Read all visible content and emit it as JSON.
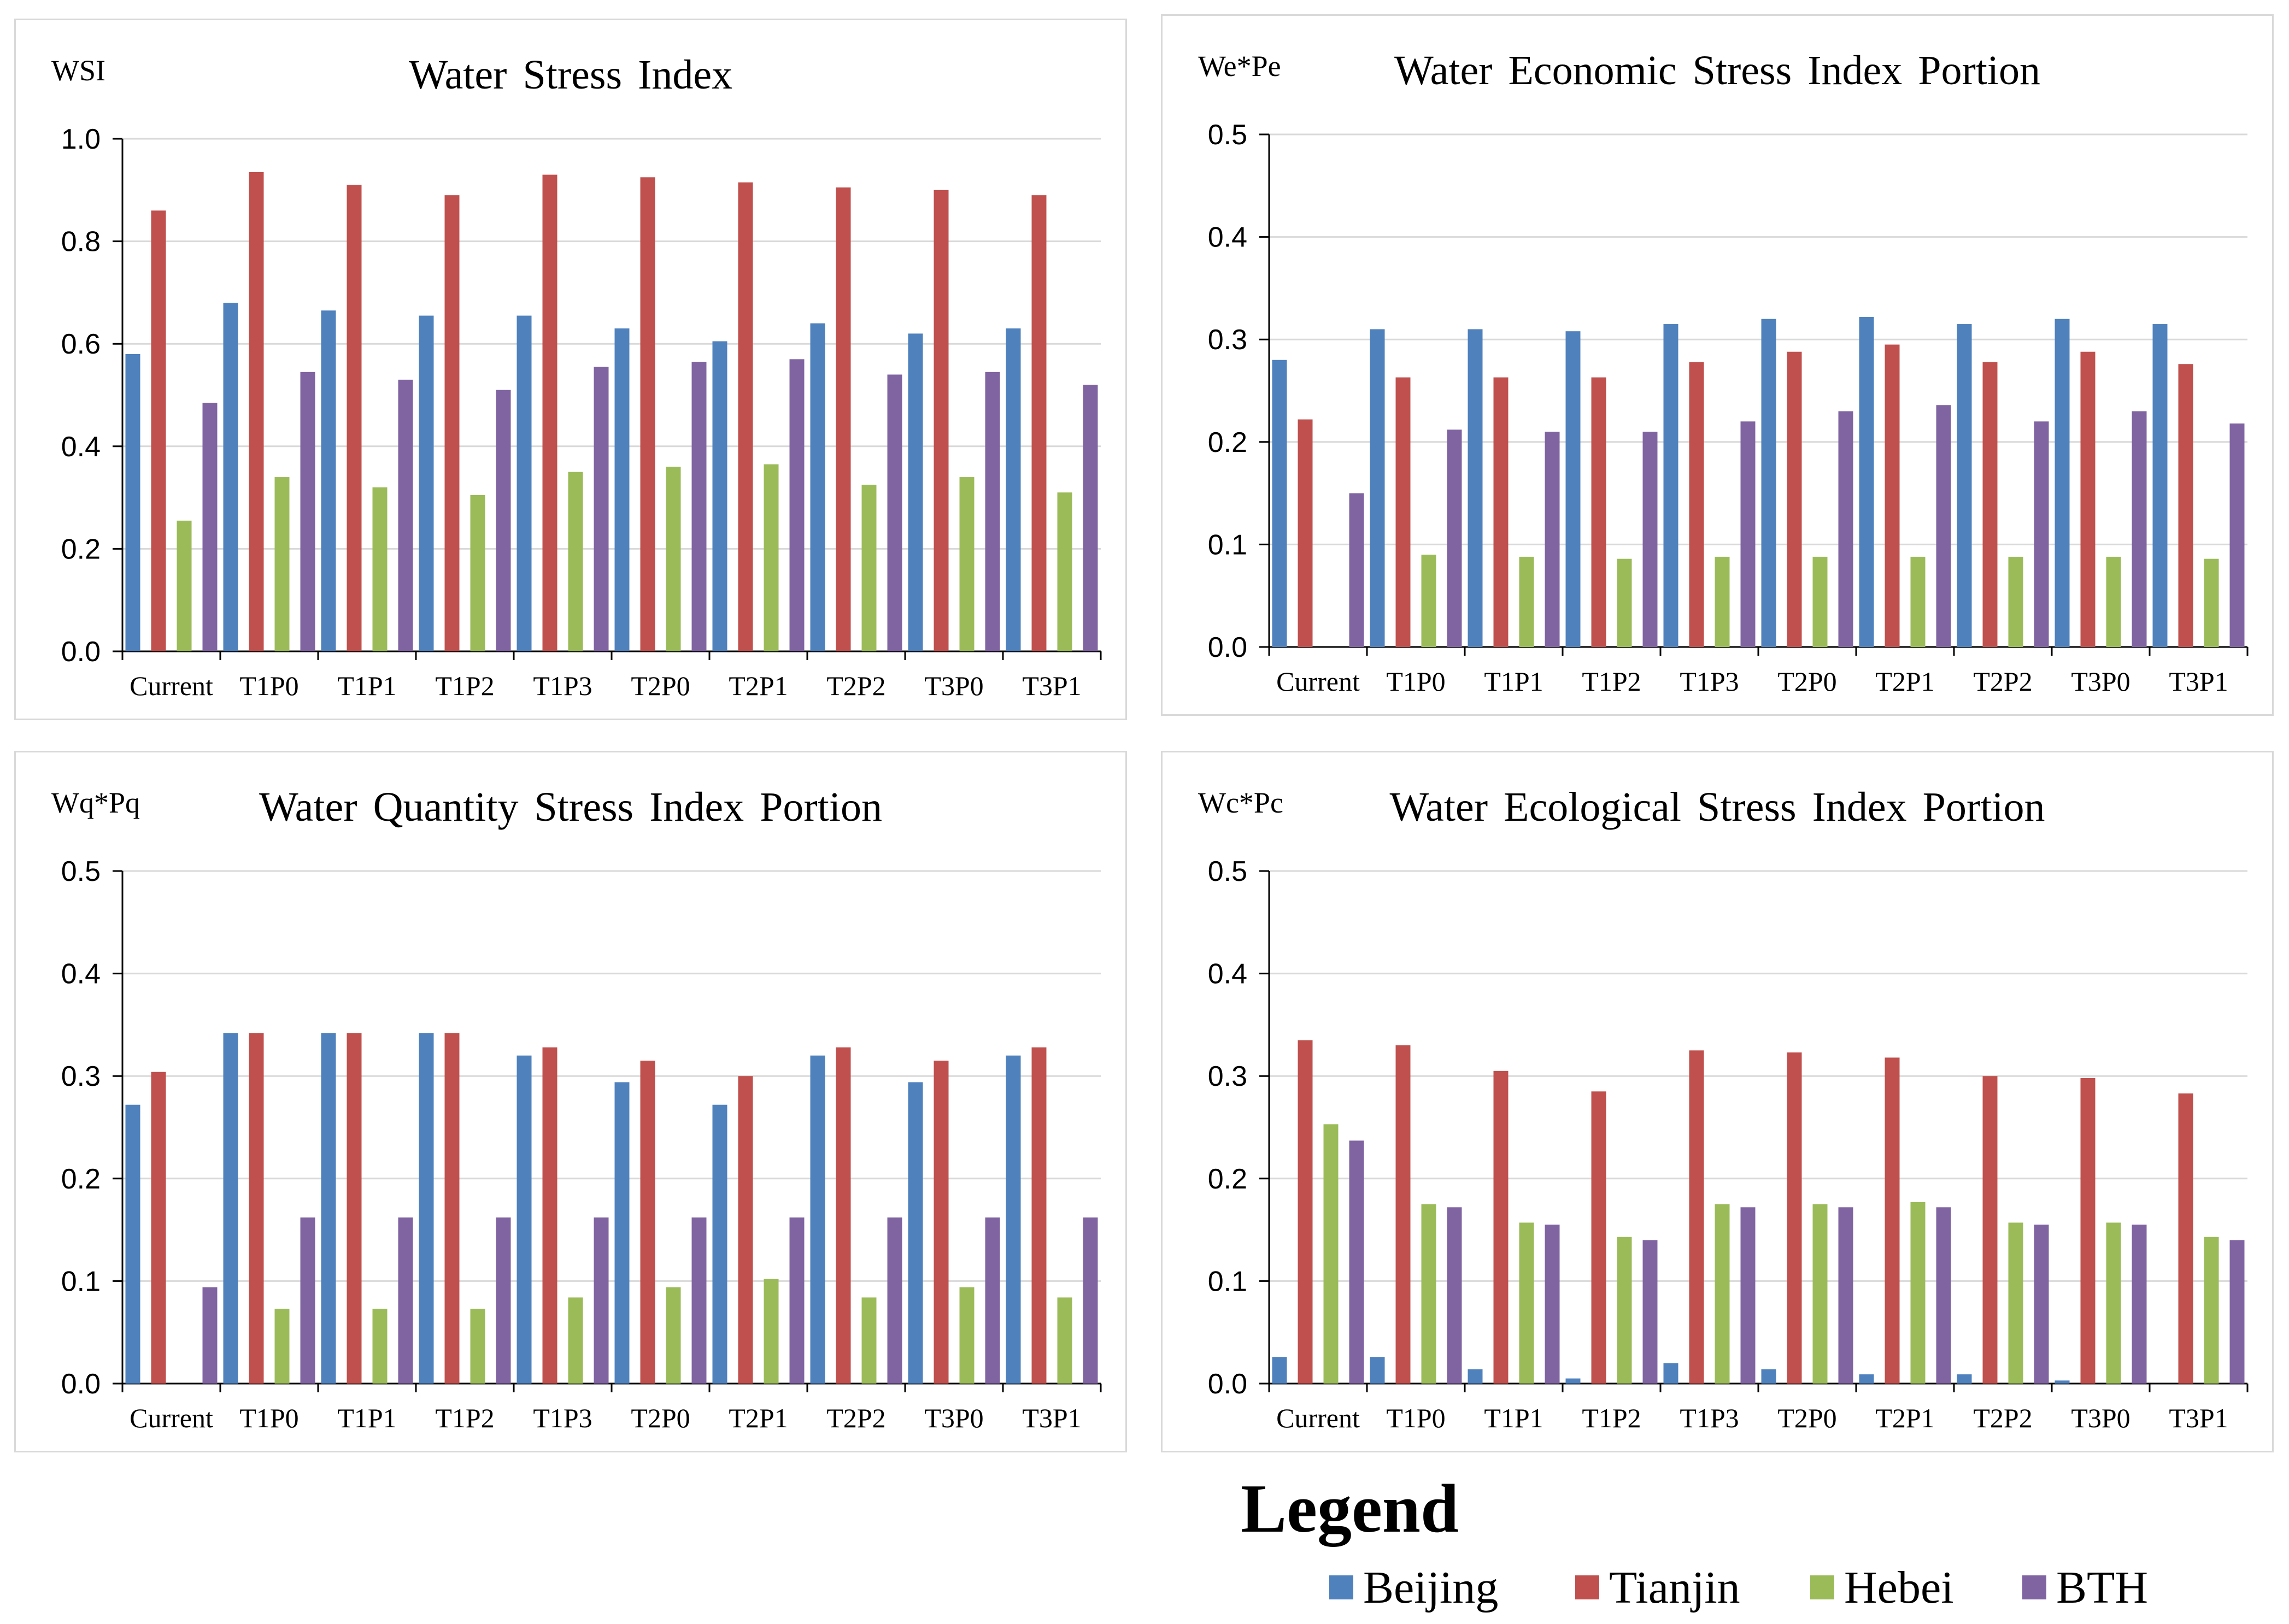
{
  "categories": [
    "Current",
    "T1P0",
    "T1P1",
    "T1P2",
    "T1P3",
    "T2P0",
    "T2P1",
    "T2P2",
    "T3P0",
    "T3P1"
  ],
  "colors": {
    "Beijing": "#4f81bd",
    "Tianjin": "#c0504d",
    "Hebei": "#9bbb59",
    "BTH": "#8064a2"
  },
  "legend": {
    "title": "Legend",
    "items": [
      {
        "name": "Beijing",
        "color": "#4f81bd"
      },
      {
        "name": "Tianjin",
        "color": "#c0504d"
      },
      {
        "name": "Hebei",
        "color": "#9bbb59"
      },
      {
        "name": "BTH",
        "color": "#8064a2"
      }
    ]
  },
  "chart_data": [
    {
      "type": "bar",
      "title": "Water Stress Index",
      "ylabel": "WSI",
      "ylim": [
        0,
        1.0
      ],
      "yticks": [
        "0.0",
        "0.2",
        "0.4",
        "0.6",
        "0.8",
        "1.0"
      ],
      "categories": [
        "Current",
        "T1P0",
        "T1P1",
        "T1P2",
        "T1P3",
        "T2P0",
        "T2P1",
        "T2P2",
        "T3P0",
        "T3P1"
      ],
      "series": [
        {
          "name": "Beijing",
          "values": [
            0.58,
            0.68,
            0.665,
            0.655,
            0.655,
            0.63,
            0.605,
            0.64,
            0.62,
            0.63
          ]
        },
        {
          "name": "Tianjin",
          "values": [
            0.86,
            0.935,
            0.91,
            0.89,
            0.93,
            0.925,
            0.915,
            0.905,
            0.9,
            0.89
          ]
        },
        {
          "name": "Hebei",
          "values": [
            0.255,
            0.34,
            0.32,
            0.305,
            0.35,
            0.36,
            0.365,
            0.325,
            0.34,
            0.31
          ]
        },
        {
          "name": "BTH",
          "values": [
            0.485,
            0.545,
            0.53,
            0.51,
            0.555,
            0.565,
            0.57,
            0.54,
            0.545,
            0.52
          ]
        }
      ]
    },
    {
      "type": "bar",
      "title": "Water Economic Stress Index Portion",
      "ylabel": "We*Pe",
      "ylim": [
        0,
        0.5
      ],
      "yticks": [
        "0.0",
        "0.1",
        "0.2",
        "0.3",
        "0.4",
        "0.5"
      ],
      "categories": [
        "Current",
        "T1P0",
        "T1P1",
        "T1P2",
        "T1P3",
        "T2P0",
        "T2P1",
        "T2P2",
        "T3P0",
        "T3P1"
      ],
      "series": [
        {
          "name": "Beijing",
          "values": [
            0.28,
            0.31,
            0.31,
            0.308,
            0.315,
            0.32,
            0.322,
            0.315,
            0.32,
            0.315
          ]
        },
        {
          "name": "Tianjin",
          "values": [
            0.222,
            0.263,
            0.263,
            0.263,
            0.278,
            0.288,
            0.295,
            0.278,
            0.288,
            0.276
          ]
        },
        {
          "name": "Hebei",
          "values": [
            0,
            0.09,
            0.088,
            0.086,
            0.088,
            0.088,
            0.088,
            0.088,
            0.088,
            0.086
          ]
        },
        {
          "name": "BTH",
          "values": [
            0.15,
            0.212,
            0.21,
            0.21,
            0.22,
            0.23,
            0.236,
            0.22,
            0.23,
            0.218
          ]
        }
      ]
    },
    {
      "type": "bar",
      "title": "Water Quantity Stress Index Portion",
      "ylabel": "Wq*Pq",
      "ylim": [
        0,
        0.5
      ],
      "yticks": [
        "0.0",
        "0.1",
        "0.2",
        "0.3",
        "0.4",
        "0.5"
      ],
      "categories": [
        "Current",
        "T1P0",
        "T1P1",
        "T1P2",
        "T1P3",
        "T2P0",
        "T2P1",
        "T2P2",
        "T3P0",
        "T3P1"
      ],
      "series": [
        {
          "name": "Beijing",
          "values": [
            0.272,
            0.342,
            0.342,
            0.342,
            0.32,
            0.294,
            0.272,
            0.32,
            0.294,
            0.32
          ]
        },
        {
          "name": "Tianjin",
          "values": [
            0.304,
            0.342,
            0.342,
            0.342,
            0.328,
            0.315,
            0.3,
            0.328,
            0.315,
            0.328
          ]
        },
        {
          "name": "Hebei",
          "values": [
            0,
            0.073,
            0.073,
            0.073,
            0.084,
            0.094,
            0.102,
            0.084,
            0.094,
            0.084
          ]
        },
        {
          "name": "BTH",
          "values": [
            0.094,
            0.162,
            0.162,
            0.162,
            0.162,
            0.162,
            0.162,
            0.162,
            0.162,
            0.162
          ]
        }
      ]
    },
    {
      "type": "bar",
      "title": "Water Ecological Stress Index Portion",
      "ylabel": "Wc*Pc",
      "ylim": [
        0,
        0.5
      ],
      "yticks": [
        "0.0",
        "0.1",
        "0.2",
        "0.3",
        "0.4",
        "0.5"
      ],
      "categories": [
        "Current",
        "T1P0",
        "T1P1",
        "T1P2",
        "T1P3",
        "T2P0",
        "T2P1",
        "T2P2",
        "T3P0",
        "T3P1"
      ],
      "series": [
        {
          "name": "Beijing",
          "values": [
            0.026,
            0.026,
            0.014,
            0.005,
            0.02,
            0.014,
            0.009,
            0.009,
            0.003,
            0
          ]
        },
        {
          "name": "Tianjin",
          "values": [
            0.335,
            0.33,
            0.305,
            0.285,
            0.325,
            0.323,
            0.318,
            0.3,
            0.298,
            0.283
          ]
        },
        {
          "name": "Hebei",
          "values": [
            0.253,
            0.175,
            0.157,
            0.143,
            0.175,
            0.175,
            0.177,
            0.157,
            0.157,
            0.143
          ]
        },
        {
          "name": "BTH",
          "values": [
            0.237,
            0.172,
            0.155,
            0.14,
            0.172,
            0.172,
            0.172,
            0.155,
            0.155,
            0.14
          ]
        }
      ]
    }
  ]
}
